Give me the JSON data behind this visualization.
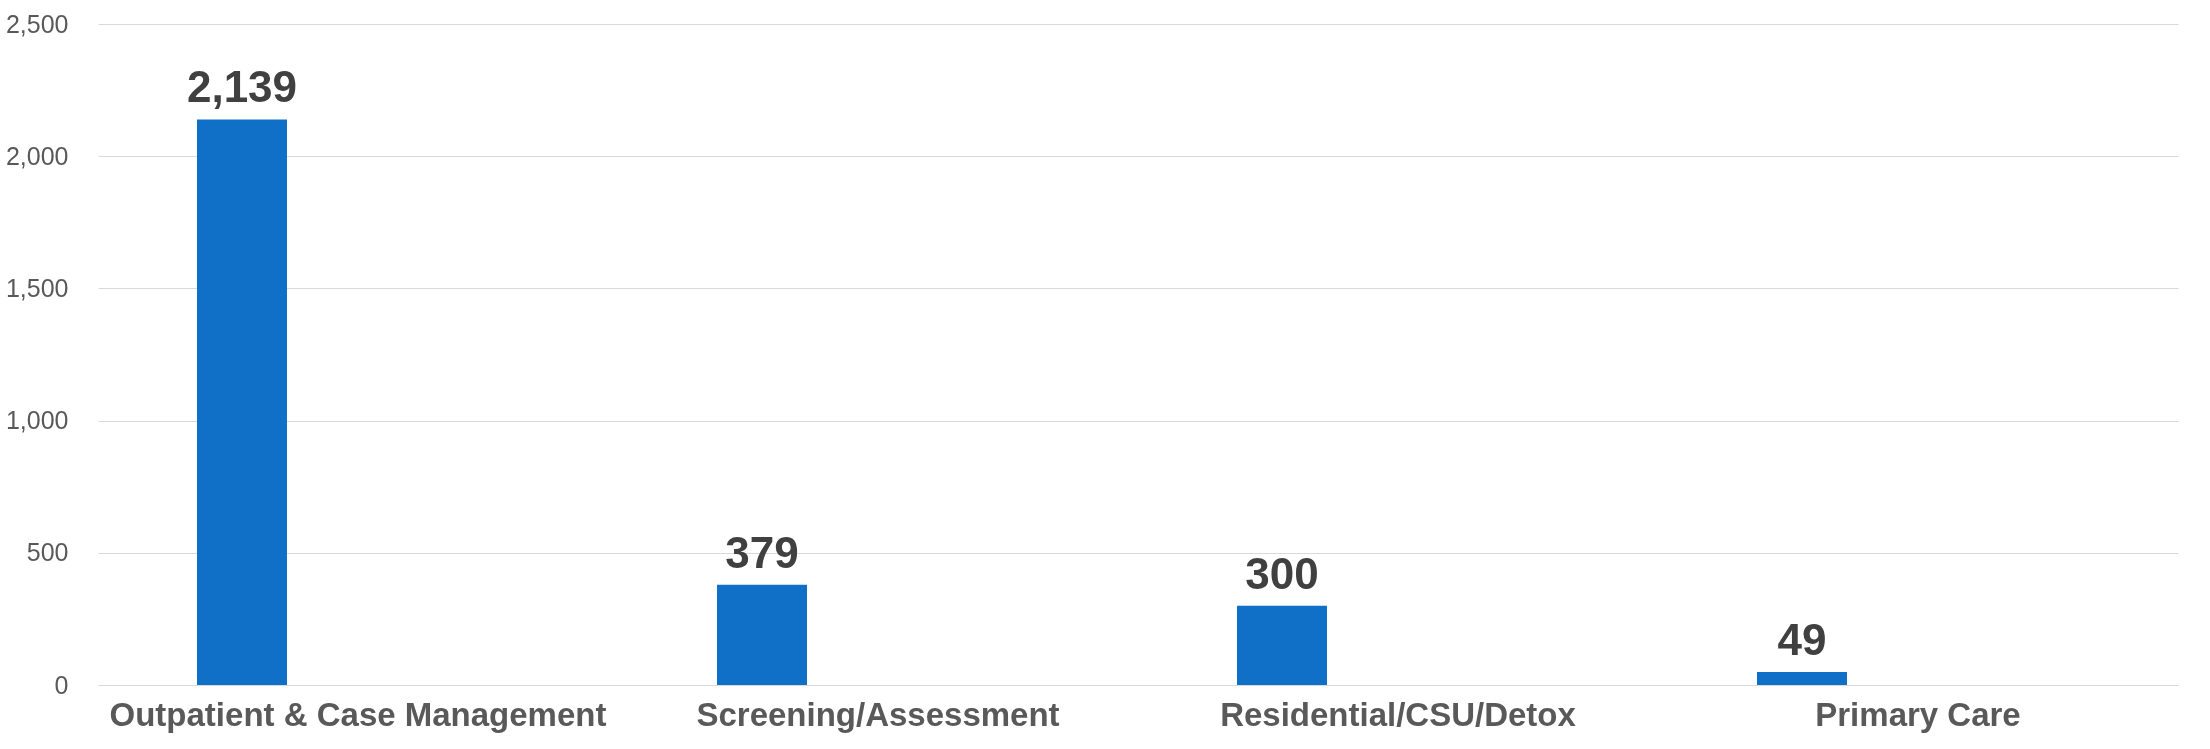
{
  "chart_data": {
    "type": "bar",
    "categories": [
      "Outpatient & Case Management",
      "Screening/Assessment",
      "Residential/CSU/Detox",
      "Primary Care"
    ],
    "values": [
      2139,
      379,
      300,
      49
    ],
    "value_labels": [
      "2,139",
      "379",
      "300",
      "49"
    ],
    "color": "#1070c8",
    "ylim": [
      0,
      2500
    ],
    "yticks": [
      0,
      {
        "value": 500,
        "label": "500"
      },
      {
        "value": 1000,
        "label": "1,000"
      },
      {
        "value": 1500,
        "label": "1,500"
      },
      {
        "value": 2000,
        "label": "2,000"
      },
      {
        "value": 2500,
        "label": "2,500"
      }
    ],
    "grid": "y"
  }
}
